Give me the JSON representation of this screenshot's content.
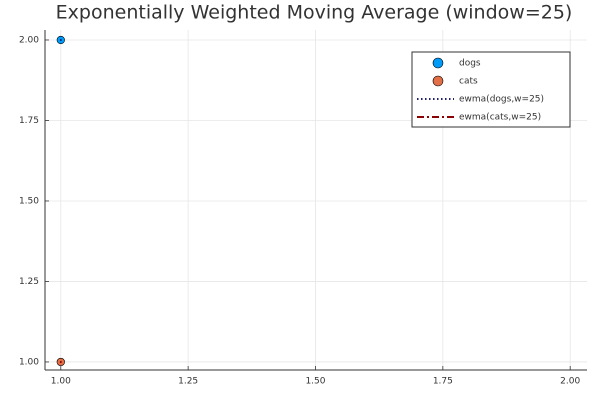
{
  "chart_data": {
    "type": "scatter",
    "title": "Exponentially Weighted Moving Average (window=25)",
    "series": [
      {
        "name": "dogs",
        "kind": "marker",
        "color": "#009af9",
        "x": [
          1
        ],
        "values": [
          2
        ]
      },
      {
        "name": "cats",
        "kind": "marker",
        "color": "#e26f46",
        "x": [
          1
        ],
        "values": [
          1
        ]
      },
      {
        "name": "ewma(dogs,w=25)",
        "kind": "line",
        "line_style": "dotted",
        "color": "#1f1f6e",
        "x": [
          1
        ],
        "values": [
          2
        ]
      },
      {
        "name": "ewma(cats,w=25)",
        "kind": "line",
        "line_style": "dashdot",
        "color": "#8b0000",
        "x": [
          1
        ],
        "values": [
          1
        ]
      }
    ],
    "xlim": [
      0.969,
      2.033
    ],
    "ylim": [
      0.975,
      2.031
    ],
    "xticks": [
      {
        "value": 1,
        "label": "1.00"
      },
      {
        "value": 1.25,
        "label": "1.25"
      },
      {
        "value": 1.5,
        "label": "1.50"
      },
      {
        "value": 1.75,
        "label": "1.75"
      },
      {
        "value": 2,
        "label": "2.00"
      }
    ],
    "yticks": [
      {
        "value": 1,
        "label": "1.00"
      },
      {
        "value": 1.25,
        "label": "1.25"
      },
      {
        "value": 1.5,
        "label": "1.50"
      },
      {
        "value": 1.75,
        "label": "1.75"
      },
      {
        "value": 2,
        "label": "2.00"
      }
    ],
    "grid": true,
    "legend": "top-right"
  }
}
